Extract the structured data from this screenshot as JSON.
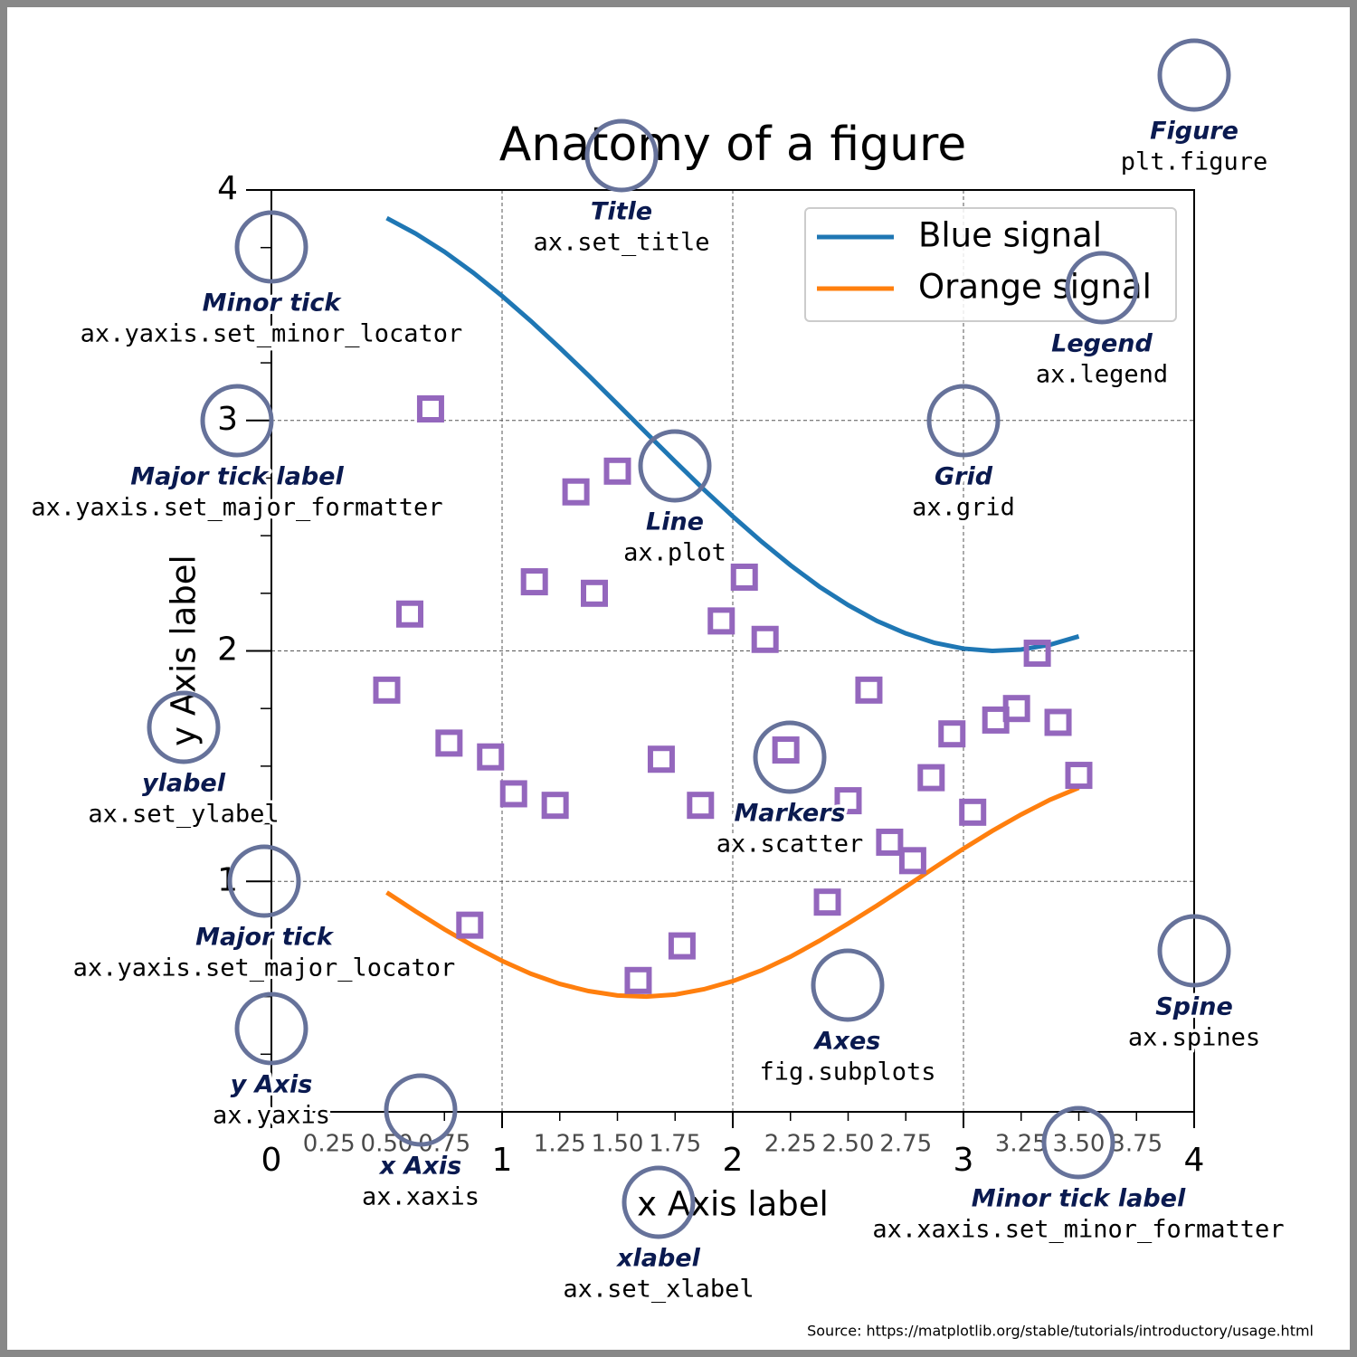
{
  "chart_data": {
    "type": "line",
    "title": "Anatomy of a figure",
    "xlabel": "x Axis label",
    "ylabel": "y Axis label",
    "x": [
      0.5,
      0.625,
      0.75,
      0.875,
      1.0,
      1.125,
      1.25,
      1.375,
      1.5,
      1.625,
      1.75,
      1.875,
      2.0,
      2.125,
      2.25,
      2.375,
      2.5,
      2.625,
      2.75,
      2.875,
      3.0,
      3.125,
      3.25,
      3.375,
      3.5
    ],
    "series": [
      {
        "name": "Blue signal",
        "color": "#1f77b4",
        "values": [
          3.878,
          3.811,
          3.732,
          3.641,
          3.54,
          3.431,
          3.315,
          3.195,
          3.071,
          2.946,
          2.822,
          2.7,
          2.584,
          2.474,
          2.372,
          2.279,
          2.199,
          2.13,
          2.076,
          2.035,
          2.01,
          2.0,
          2.006,
          2.027,
          2.063
        ]
      },
      {
        "name": "Orange signal",
        "color": "#ff7f0e",
        "values": [
          0.952,
          0.87,
          0.792,
          0.72,
          0.655,
          0.599,
          0.555,
          0.524,
          0.505,
          0.5,
          0.509,
          0.532,
          0.567,
          0.614,
          0.673,
          0.742,
          0.817,
          0.895,
          0.977,
          1.06,
          1.142,
          1.219,
          1.29,
          1.354,
          1.406
        ]
      }
    ],
    "scatter": {
      "color": "#9467bd",
      "x": [
        0.69,
        0.6,
        0.5,
        0.77,
        0.95,
        1.05,
        1.23,
        1.14,
        1.32,
        1.5,
        1.4,
        0.86,
        1.59,
        1.78,
        1.69,
        1.86,
        1.95,
        2.05,
        2.14,
        2.23,
        2.5,
        2.41,
        2.59,
        2.68,
        2.78,
        2.86,
        2.95,
        3.04,
        3.14,
        3.23,
        3.32,
        3.41,
        3.5
      ],
      "values": [
        3.05,
        2.16,
        1.83,
        1.6,
        1.54,
        1.38,
        1.33,
        2.3,
        2.69,
        2.78,
        2.25,
        0.81,
        0.57,
        0.72,
        1.53,
        1.33,
        2.13,
        2.32,
        2.05,
        1.57,
        1.35,
        0.91,
        1.83,
        1.17,
        1.09,
        1.45,
        1.64,
        1.3,
        1.7,
        1.75,
        1.99,
        1.69,
        1.46
      ]
    },
    "xlim": [
      0,
      4
    ],
    "ylim": [
      0,
      4
    ],
    "xticks": [
      0,
      1,
      2,
      3,
      4
    ],
    "xminorticks": [
      0.25,
      {
        "value": 0.5,
        "label": "0.50"
      },
      0.75,
      1.25,
      {
        "value": 1.5,
        "label": "1.50"
      },
      1.75,
      2.25,
      {
        "value": 2.5,
        "label": "2.50"
      },
      2.75,
      3.25,
      {
        "value": 3.5,
        "label": "3.50"
      },
      3.75
    ],
    "yticks": [
      1,
      2,
      3,
      4
    ],
    "yminorticks": [
      0.25,
      0.5,
      0.75,
      1.25,
      1.5,
      1.75,
      2.25,
      2.5,
      2.75,
      3.25,
      3.5,
      3.75
    ],
    "grid": true,
    "legend": "upper right",
    "annotations": [
      {
        "title": "Figure",
        "code": "plt.figure"
      },
      {
        "title": "Title",
        "code": "ax.set_title"
      },
      {
        "title": "Minor tick",
        "code": "ax.yaxis.set_minor_locator"
      },
      {
        "title": "Legend",
        "code": "ax.legend"
      },
      {
        "title": "Major tick label",
        "code": "ax.yaxis.set_major_formatter"
      },
      {
        "title": "Grid",
        "code": "ax.grid"
      },
      {
        "title": "Line",
        "code": "ax.plot"
      },
      {
        "title": "ylabel",
        "code": "ax.set_ylabel"
      },
      {
        "title": "Markers",
        "code": "ax.scatter"
      },
      {
        "title": "Major tick",
        "code": "ax.yaxis.set_major_locator"
      },
      {
        "title": "Spine",
        "code": "ax.spines"
      },
      {
        "title": "Axes",
        "code": "fig.subplots"
      },
      {
        "title": "y Axis",
        "code": "ax.yaxis"
      },
      {
        "title": "x Axis",
        "code": "ax.xaxis"
      },
      {
        "title": "Minor tick label",
        "code": "ax.xaxis.set_minor_formatter"
      },
      {
        "title": "xlabel",
        "code": "ax.set_xlabel"
      }
    ],
    "source": "Source:  https://matplotlib.org/stable/tutorials/introductory/usage.html"
  }
}
